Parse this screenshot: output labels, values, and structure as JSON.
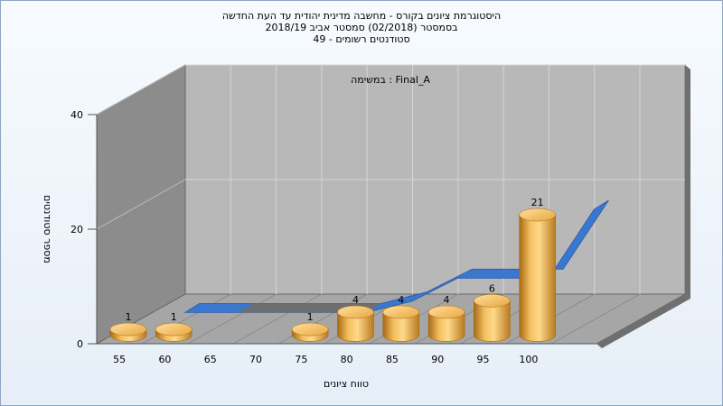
{
  "header": {
    "title_line1": "היסטוגרמת ציונים בקורס - מחשבה מדינית יהודית עד העת החדשה",
    "title_line2": "בסמסטר  (02/2018)  סמסטר אביב 2018/19",
    "title_line3": "סטודנטים רשומים - 49"
  },
  "chart_data": {
    "type": "bar",
    "annotation": "במשימה : Final_A",
    "xlabel": "טווח ציונים",
    "ylabel": "מספר סטודנטים",
    "categories": [
      "55",
      "60",
      "65",
      "70",
      "75",
      "80",
      "85",
      "90",
      "95",
      "100"
    ],
    "values": [
      1,
      1,
      0,
      0,
      1,
      4,
      4,
      4,
      6,
      21
    ],
    "y_ticks": [
      "0",
      "20",
      "40"
    ],
    "ylim": [
      0,
      40
    ],
    "cumulative_line": [
      0,
      0,
      0,
      0,
      0,
      2,
      6,
      6,
      6,
      18
    ],
    "grid": true,
    "colors": {
      "bar": "#e8a640",
      "line": "#3a78d0",
      "back_wall": "#b8b8b8",
      "side_wall": "#8c8c8c",
      "floor": "#a6a6a6"
    }
  }
}
